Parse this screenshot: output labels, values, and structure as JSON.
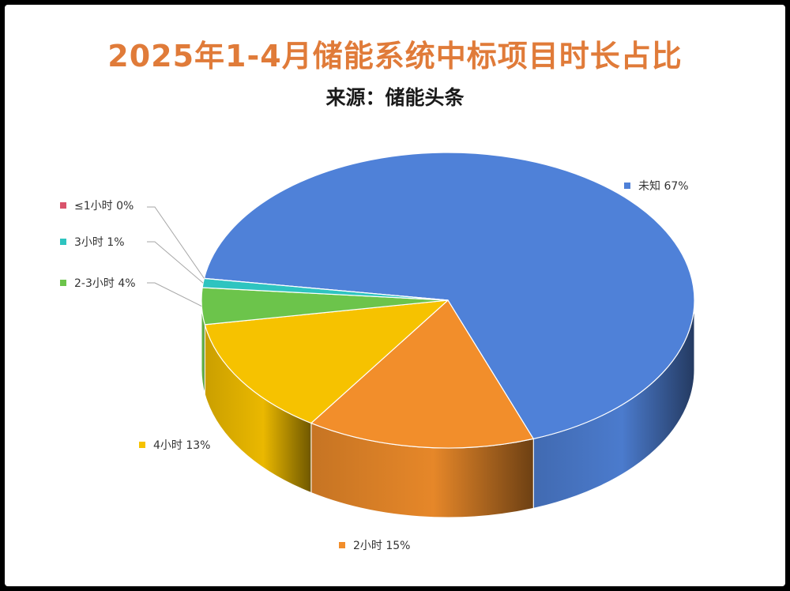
{
  "chart_data": {
    "type": "pie",
    "title": "2025年1-4月储能系统中标项目时长占比",
    "subtitle": "来源：储能头条",
    "unit": "%",
    "three_d": true,
    "slices": [
      {
        "label": "未知",
        "value": 67,
        "display": "未知 67%",
        "color": "#4f81d8"
      },
      {
        "label": "2小时",
        "value": 15,
        "display": "2小时 15%",
        "color": "#f28e2b"
      },
      {
        "label": "4小时",
        "value": 13,
        "display": "4小时 13%",
        "color": "#f6c200"
      },
      {
        "label": "2-3小时",
        "value": 4,
        "display": "2-3小时 4%",
        "color": "#6cc44b"
      },
      {
        "label": "3小时",
        "value": 1,
        "display": "3小时 1%",
        "color": "#2ec4c0"
      },
      {
        "label": "≤1小时",
        "value": 0,
        "display": "≤1小时 0%",
        "color": "#d9536b"
      }
    ]
  }
}
